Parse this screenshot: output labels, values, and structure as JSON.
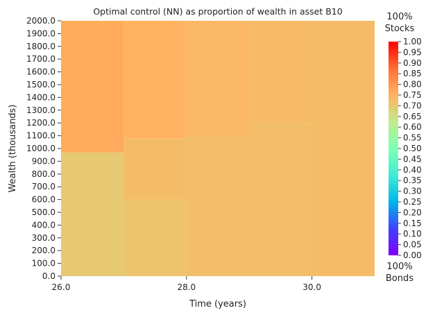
{
  "chart_data": {
    "type": "heatmap",
    "title": "Optimal control (NN) as proportion of wealth in asset B10",
    "xlabel": "Time (years)",
    "ylabel": "Wealth (thousands)",
    "x_ticks": [
      "26.0",
      "28.0",
      "30.0"
    ],
    "y_ticks": [
      "0.0",
      "100.0",
      "200.0",
      "300.0",
      "400.0",
      "500.0",
      "600.0",
      "700.0",
      "800.0",
      "900.0",
      "1000.0",
      "1100.0",
      "1200.0",
      "1300.0",
      "1400.0",
      "1500.0",
      "1600.0",
      "1700.0",
      "1800.0",
      "1900.0",
      "2000.0"
    ],
    "xlim": [
      26.0,
      31.0
    ],
    "ylim": [
      0.0,
      2000.0
    ],
    "colorbar": {
      "min": 0.0,
      "max": 1.0,
      "colormap": "rainbow",
      "ticks": [
        "0.00",
        "0.05",
        "0.10",
        "0.15",
        "0.20",
        "0.25",
        "0.30",
        "0.35",
        "0.40",
        "0.45",
        "0.50",
        "0.55",
        "0.60",
        "0.65",
        "0.70",
        "0.75",
        "0.80",
        "0.85",
        "0.90",
        "0.95",
        "1.00"
      ],
      "top_label": [
        "100%",
        "Stocks"
      ],
      "bottom_label": [
        "100%",
        "Bonds"
      ]
    },
    "cells": [
      {
        "x0": 26.0,
        "x1": 27.0,
        "y0": 0.0,
        "y1": 970.0,
        "value": 0.7
      },
      {
        "x0": 26.0,
        "x1": 27.0,
        "y0": 970.0,
        "y1": 2000.0,
        "value": 0.765
      },
      {
        "x0": 27.0,
        "x1": 28.0,
        "y0": 0.0,
        "y1": 600.0,
        "value": 0.715
      },
      {
        "x0": 27.0,
        "x1": 28.0,
        "y0": 600.0,
        "y1": 1080.0,
        "value": 0.73
      },
      {
        "x0": 27.0,
        "x1": 28.0,
        "y0": 1080.0,
        "y1": 2000.0,
        "value": 0.75
      },
      {
        "x0": 28.0,
        "x1": 29.0,
        "y0": 0.0,
        "y1": 1100.0,
        "value": 0.725
      },
      {
        "x0": 28.0,
        "x1": 29.0,
        "y0": 1100.0,
        "y1": 2000.0,
        "value": 0.74
      },
      {
        "x0": 29.0,
        "x1": 30.0,
        "y0": 0.0,
        "y1": 1200.0,
        "value": 0.725
      },
      {
        "x0": 29.0,
        "x1": 30.0,
        "y0": 1200.0,
        "y1": 2000.0,
        "value": 0.735
      },
      {
        "x0": 30.0,
        "x1": 31.0,
        "y0": 0.0,
        "y1": 2000.0,
        "value": 0.73
      }
    ]
  }
}
